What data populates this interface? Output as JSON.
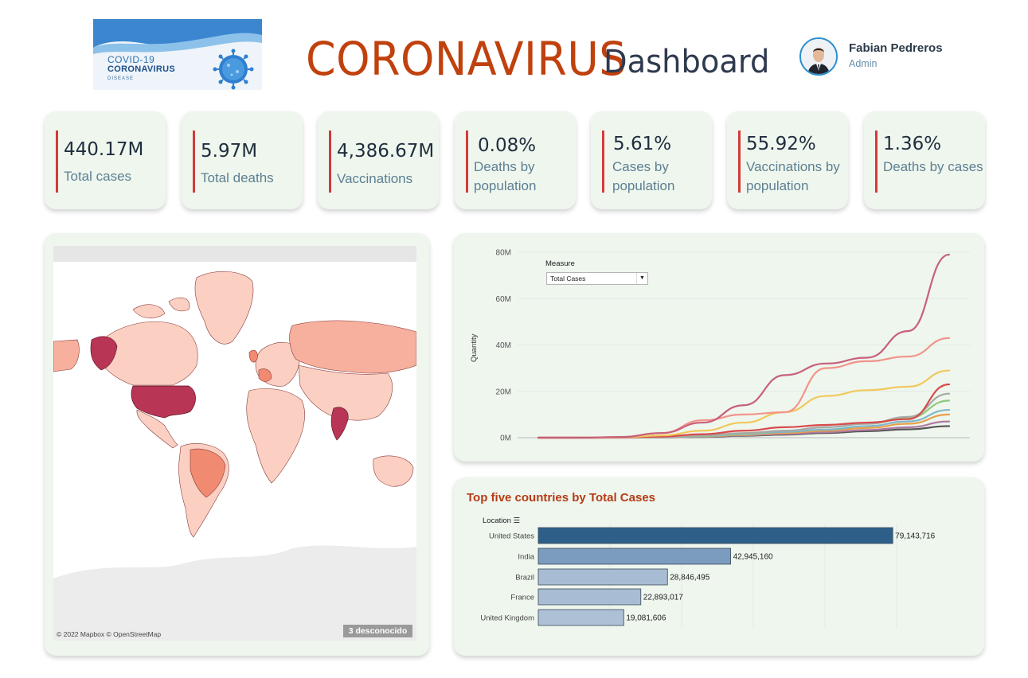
{
  "header": {
    "logo": {
      "line1": "COVID-19",
      "line2": "CORONAVIRUS",
      "line3": "DISEASE"
    },
    "title_main": "CORONAVIRUS",
    "title_sub": "Dashboard",
    "user": {
      "name": "Fabian Pedreros",
      "role": "Admin"
    }
  },
  "kpis": [
    {
      "value": "440.17M",
      "label": "Total cases"
    },
    {
      "value": "5.97M",
      "label": "Total deaths"
    },
    {
      "value": "4,386.67M",
      "label": "Vaccinations"
    },
    {
      "value": "0.08%",
      "label": "Deaths by population"
    },
    {
      "value": "5.61%",
      "label": "Cases by population"
    },
    {
      "value": "55.92%",
      "label": "Vaccinations by population"
    },
    {
      "value": "1.36%",
      "label": "Deaths by cases"
    }
  ],
  "map": {
    "credit": "© 2022 Mapbox © OpenStreetMap",
    "unknown_badge": "3 desconocido",
    "colors": {
      "max": "#b83556",
      "high": "#f08a70",
      "mid": "#f7b09e",
      "low": "#fbd0c3",
      "unknown": "#ececec"
    }
  },
  "line_chart": {
    "measure_label": "Measure",
    "measure_value": "Total Cases",
    "ylabel": "Quantity",
    "ticks": [
      "0M",
      "20M",
      "40M",
      "60M",
      "80M"
    ]
  },
  "bar_chart": {
    "title": "Top five countries by Total Cases",
    "axis_title": "Location",
    "rows": [
      {
        "label": "United States",
        "text": "79,143,716"
      },
      {
        "label": "India",
        "text": "42,945,160"
      },
      {
        "label": "Brazil",
        "text": "28,846,495"
      },
      {
        "label": "France",
        "text": "22,893,017"
      },
      {
        "label": "United Kingdom",
        "text": "19,081,606"
      }
    ]
  },
  "chart_data": [
    {
      "type": "line",
      "ylabel": "Quantity",
      "ylim": [
        0,
        80000000
      ],
      "x_index": [
        0,
        10,
        20,
        30,
        40,
        50,
        60,
        70,
        80,
        90,
        100
      ],
      "series": [
        {
          "color": "#c8607a",
          "values": [
            0,
            0,
            300000,
            2000000,
            6500000,
            14000000,
            27000000,
            32000000,
            34500000,
            46000000,
            79000000
          ]
        },
        {
          "color": "#f3948a",
          "values": [
            0,
            0,
            200000,
            2000000,
            7500000,
            10000000,
            11000000,
            30000000,
            33000000,
            35000000,
            43000000
          ]
        },
        {
          "color": "#f2c85b",
          "values": [
            0,
            0,
            100000,
            1000000,
            3000000,
            6500000,
            11000000,
            18000000,
            20500000,
            22000000,
            29000000
          ]
        },
        {
          "color": "#d94a4a",
          "values": [
            0,
            0,
            100000,
            500000,
            1500000,
            3000000,
            4500000,
            5500000,
            6500000,
            8000000,
            23000000
          ]
        },
        {
          "color": "#a8a8a8",
          "values": [
            0,
            0,
            50000,
            300000,
            1000000,
            2000000,
            3000000,
            4500000,
            6000000,
            9000000,
            19000000
          ]
        },
        {
          "color": "#8fc97a",
          "values": [
            0,
            0,
            50000,
            300000,
            800000,
            1800000,
            3000000,
            4500000,
            6000000,
            8500000,
            16000000
          ]
        },
        {
          "color": "#7fb7c9",
          "values": [
            0,
            0,
            30000,
            200000,
            600000,
            1500000,
            2500000,
            3500000,
            5000000,
            7000000,
            12000000
          ]
        },
        {
          "color": "#e8a04a",
          "values": [
            0,
            0,
            20000,
            150000,
            500000,
            1200000,
            2000000,
            3000000,
            4200000,
            6000000,
            10000000
          ]
        },
        {
          "color": "#b07aa1",
          "values": [
            0,
            0,
            10000,
            100000,
            400000,
            1000000,
            1600000,
            2400000,
            3300000,
            4500000,
            7000000
          ]
        },
        {
          "color": "#555555",
          "values": [
            0,
            0,
            10000,
            80000,
            300000,
            800000,
            1300000,
            2000000,
            2800000,
            3600000,
            5000000
          ]
        }
      ]
    },
    {
      "type": "bar",
      "title": "Top five countries by Total Cases",
      "xlabel": "",
      "ylabel": "Location",
      "categories": [
        "United States",
        "India",
        "Brazil",
        "France",
        "United Kingdom"
      ],
      "values": [
        79143716,
        42945160,
        28846495,
        22893017,
        19081606
      ],
      "colors": [
        "#2e5f88",
        "#7b9bbf",
        "#a8bcd3",
        "#a8bcd3",
        "#adc0d5"
      ]
    }
  ]
}
